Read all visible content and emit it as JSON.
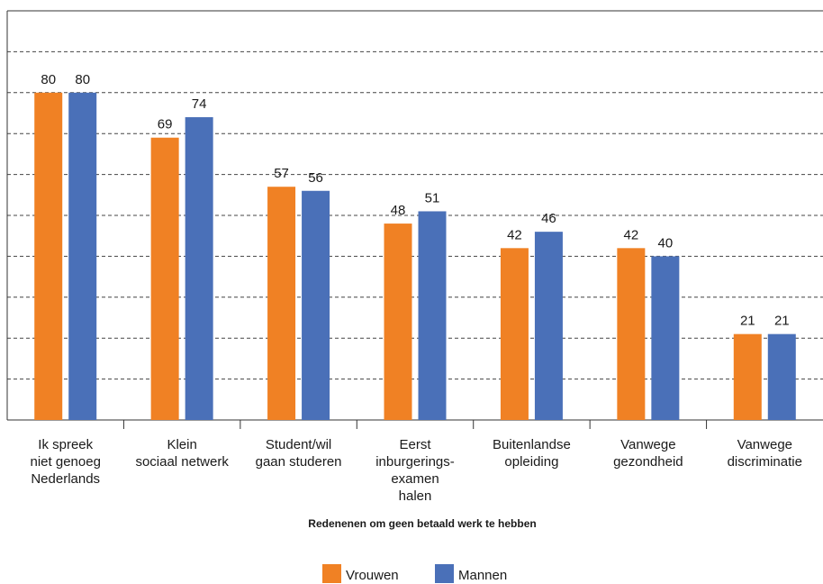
{
  "chart_data": {
    "type": "bar",
    "title": "",
    "xlabel": "Redenenen om geen betaald werk te hebben",
    "ylabel": "",
    "ylim": [
      0,
      100
    ],
    "grid": true,
    "legend_position": "bottom",
    "categories": [
      [
        "Ik spreek",
        "niet genoeg",
        "Nederlands"
      ],
      [
        "Klein",
        "sociaal netwerk"
      ],
      [
        "Student/wil",
        "gaan studeren"
      ],
      [
        "Eerst",
        "inburgerings-",
        "examen",
        "halen"
      ],
      [
        "Buitenlandse",
        "opleiding"
      ],
      [
        "Vanwege",
        "gezondheid"
      ],
      [
        "Vanwege",
        "discriminatie"
      ]
    ],
    "series": [
      {
        "name": "Vrouwen",
        "color": "#f08124",
        "values": [
          80,
          69,
          57,
          48,
          42,
          42,
          21
        ]
      },
      {
        "name": "Mannen",
        "color": "#4a70b8",
        "values": [
          80,
          74,
          56,
          51,
          46,
          40,
          21
        ]
      }
    ]
  }
}
